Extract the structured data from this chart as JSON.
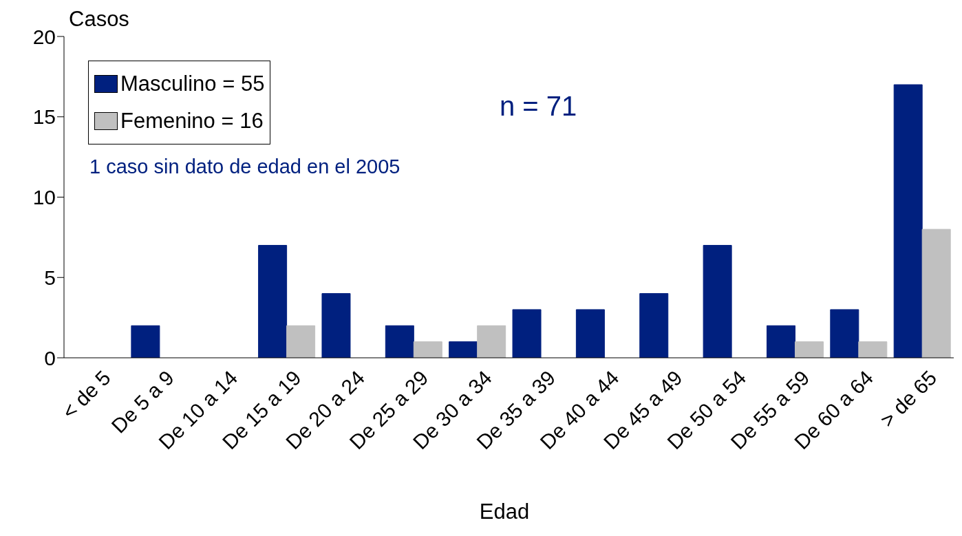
{
  "chart_data": {
    "type": "bar",
    "categories": [
      "< de 5",
      "De 5 a 9",
      "De 10 a 14",
      "De 15 a 19",
      "De 20 a 24",
      "De 25 a 29",
      "De 30 a 34",
      "De 35 a 39",
      "De 40 a 44",
      "De 45 a 49",
      "De 50 a 54",
      "De 55 a 59",
      "De 60 a 64",
      "> de 65"
    ],
    "series": [
      {
        "name": "Masculino = 55",
        "color": "#00207f",
        "values": [
          0,
          2,
          0,
          7,
          4,
          2,
          1,
          3,
          3,
          4,
          7,
          2,
          3,
          17
        ]
      },
      {
        "name": "Femenino = 16",
        "color": "#c0c0c0",
        "values": [
          0,
          0,
          0,
          2,
          0,
          1,
          2,
          0,
          0,
          0,
          0,
          1,
          1,
          8
        ]
      }
    ],
    "xlabel": "Edad",
    "ylabel": "Casos",
    "ylim": [
      0,
      20
    ],
    "yticks": [
      0,
      5,
      10,
      15,
      20
    ],
    "annotations": [
      "n = 71",
      "1  caso sin dato de edad en el 2005"
    ],
    "grid": false,
    "legend": "top left"
  }
}
